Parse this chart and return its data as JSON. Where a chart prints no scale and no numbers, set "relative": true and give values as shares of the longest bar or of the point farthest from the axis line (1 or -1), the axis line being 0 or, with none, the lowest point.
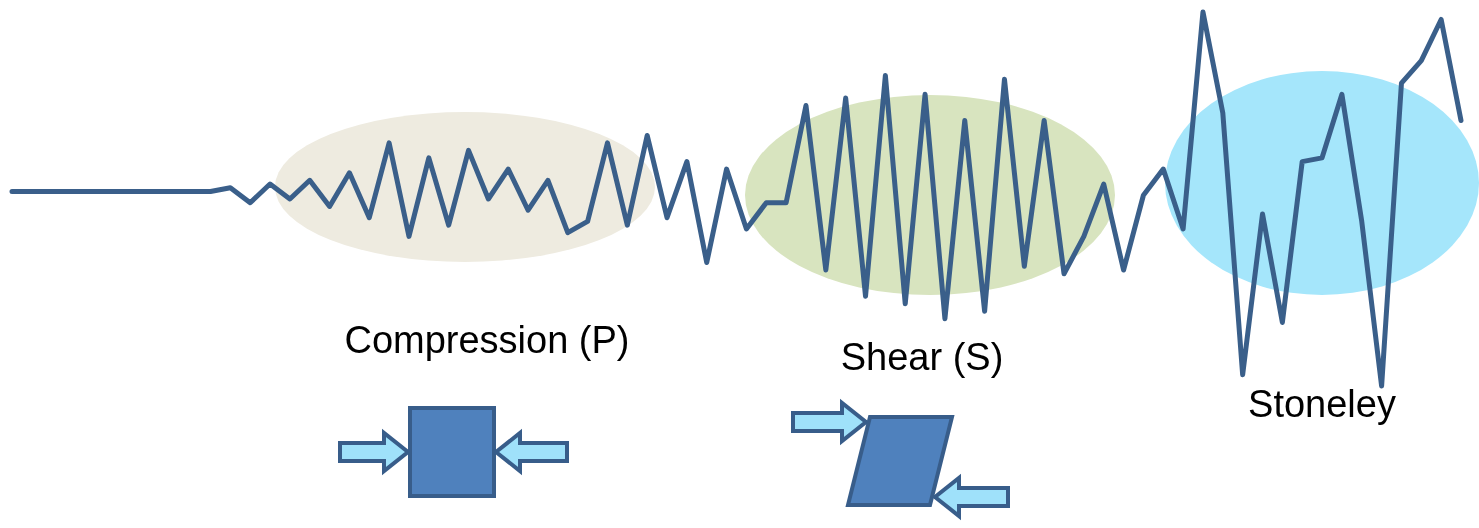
{
  "chart_data": {
    "type": "line",
    "relative": true,
    "marker": "none",
    "line_style": "solid",
    "categories": [
      null,
      null,
      null,
      null,
      null,
      null,
      null,
      null,
      null,
      null,
      null,
      null,
      null,
      null,
      null,
      null,
      null,
      null,
      null,
      null,
      null,
      null,
      null,
      null,
      null,
      null,
      null,
      null,
      null,
      null,
      null,
      null,
      null,
      null,
      null,
      null,
      null,
      null,
      null,
      null,
      null,
      null,
      null,
      null,
      null,
      null,
      null,
      null,
      null,
      null,
      null,
      null,
      null,
      null,
      null,
      null,
      null,
      null,
      null,
      null,
      null,
      null,
      null,
      null,
      null,
      null,
      null,
      null,
      null,
      null,
      null,
      null,
      null,
      null
    ],
    "series": [
      {
        "color": "#3a5f8a",
        "values": [
          0.52,
          0.52,
          0.52,
          0.52,
          0.52,
          0.52,
          0.52,
          0.52,
          0.52,
          0.52,
          0.52,
          0.53,
          0.49,
          0.54,
          0.5,
          0.55,
          0.48,
          0.57,
          0.45,
          0.65,
          0.4,
          0.61,
          0.43,
          0.63,
          0.5,
          0.58,
          0.47,
          0.55,
          0.41,
          0.44,
          0.65,
          0.43,
          0.67,
          0.45,
          0.6,
          0.33,
          0.58,
          0.42,
          0.49,
          0.49,
          0.75,
          0.31,
          0.77,
          0.24,
          0.83,
          0.22,
          0.78,
          0.18,
          0.71,
          0.2,
          0.82,
          0.32,
          0.71,
          0.3,
          0.4,
          0.54,
          0.31,
          0.51,
          0.58,
          0.42,
          1,
          0.73,
          0.03,
          0.46,
          0.17,
          0.6,
          0.61,
          0.78,
          0.44,
          0,
          0.81,
          0.87,
          0.98,
          0.71
        ]
      }
    ],
    "annotations": [
      "Compression (P)",
      "Shear (S)",
      "Stoneley"
    ]
  }
}
